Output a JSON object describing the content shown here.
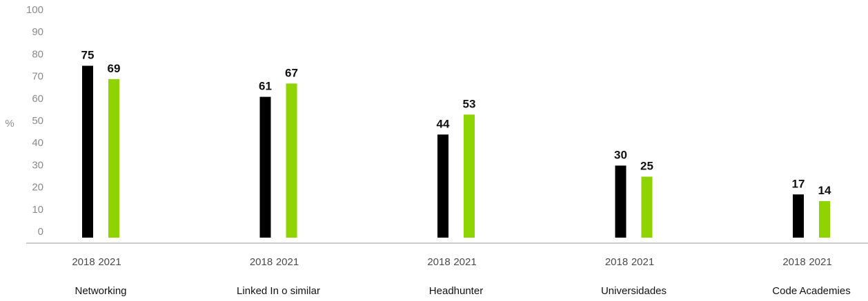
{
  "chart_data": {
    "type": "bar",
    "ylabel": "%",
    "ylim": [
      0,
      100
    ],
    "yticks": [
      0,
      10,
      20,
      30,
      40,
      50,
      60,
      70,
      80,
      90,
      100
    ],
    "categories": [
      "Networking",
      "Linked In o similar",
      "Headhunter",
      "Universidades",
      "Code Academies"
    ],
    "series": [
      {
        "name": "2018",
        "color": "#000000",
        "values": [
          75,
          61,
          44,
          30,
          17
        ]
      },
      {
        "name": "2021",
        "color": "#8fd400",
        "values": [
          69,
          67,
          53,
          25,
          14
        ]
      }
    ],
    "grid": false
  }
}
